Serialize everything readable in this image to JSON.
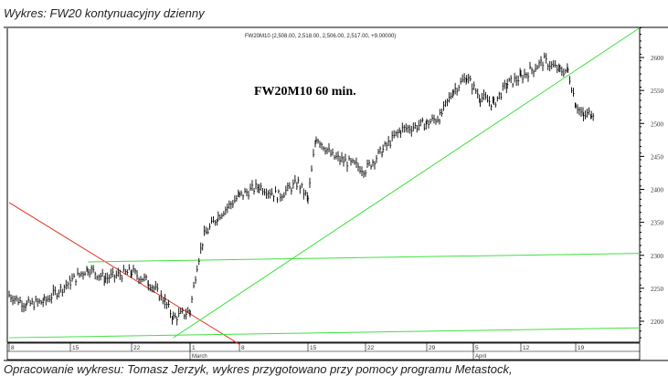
{
  "header": {
    "title": "Wykres: FW20 kontynuacyjny dzienny"
  },
  "footer": {
    "text": "Opracowanie wykresu: Tomasz Jerzyk, wykres przygotowano przy pomocy programu Metastock,"
  },
  "chart_data": {
    "type": "ohlc",
    "series_header": "FW20M10 (2,508.00, 2,518.00, 2,506.00, 2,517.00, +9.00000)",
    "annotation": "FW20M10 60 min.",
    "y_ticks": [
      2200,
      2250,
      2300,
      2350,
      2400,
      2450,
      2500,
      2550,
      2600
    ],
    "ylim": [
      2165,
      2650
    ],
    "x_ticks": [
      {
        "date": "02-08",
        "label": "8"
      },
      {
        "date": "02-15",
        "label": "15"
      },
      {
        "date": "02-22",
        "label": "22"
      },
      {
        "date": "03-01",
        "label": "1"
      },
      {
        "date": "03-08",
        "label": "8"
      },
      {
        "date": "03-15",
        "label": "15"
      },
      {
        "date": "03-22",
        "label": "22"
      },
      {
        "date": "03-29",
        "label": "29"
      },
      {
        "date": "04-05",
        "label": "5"
      },
      {
        "date": "04-12",
        "label": "12"
      },
      {
        "date": "04-19",
        "label": "19"
      }
    ],
    "months": [
      {
        "date": "03-01",
        "label": "March"
      },
      {
        "date": "04-05",
        "label": "April"
      }
    ],
    "series": [
      {
        "values": [
          [
            "02-08",
            2240
          ],
          [
            "02-10",
            2225
          ],
          [
            "02-12",
            2230
          ],
          [
            "02-15",
            2260
          ],
          [
            "02-17",
            2280
          ],
          [
            "02-19",
            2265
          ],
          [
            "02-22",
            2275
          ],
          [
            "02-24",
            2260
          ],
          [
            "02-26",
            2230
          ],
          [
            "02-27",
            2205
          ],
          [
            "03-01",
            2215
          ],
          [
            "03-02",
            2285
          ],
          [
            "03-03",
            2330
          ],
          [
            "03-05",
            2360
          ],
          [
            "03-08",
            2390
          ],
          [
            "03-10",
            2405
          ],
          [
            "03-12",
            2390
          ],
          [
            "03-14",
            2410
          ],
          [
            "03-15",
            2385
          ],
          [
            "03-16",
            2480
          ],
          [
            "03-18",
            2450
          ],
          [
            "03-20",
            2440
          ],
          [
            "03-22",
            2430
          ],
          [
            "03-24",
            2460
          ],
          [
            "03-26",
            2490
          ],
          [
            "03-29",
            2500
          ],
          [
            "03-31",
            2510
          ],
          [
            "04-02",
            2550
          ],
          [
            "04-04",
            2570
          ],
          [
            "04-06",
            2540
          ],
          [
            "04-08",
            2530
          ],
          [
            "04-10",
            2560
          ],
          [
            "04-12",
            2570
          ],
          [
            "04-15",
            2595
          ],
          [
            "04-17",
            2580
          ],
          [
            "04-18",
            2580
          ],
          [
            "04-19",
            2530
          ],
          [
            "04-20",
            2510
          ],
          [
            "04-21",
            2517
          ]
        ]
      }
    ],
    "trendlines": [
      {
        "color": "#e03020",
        "from": [
          "02-08",
          2380
        ],
        "to": [
          "03-08",
          2165
        ]
      },
      {
        "color": "#40e040",
        "from": [
          "02-27",
          2175
        ],
        "to": [
          "04-30",
          2645
        ]
      },
      {
        "color": "#40e040",
        "from": [
          "02-17",
          2290
        ],
        "to": [
          "04-30",
          2303
        ]
      },
      {
        "color": "#40e040",
        "from": [
          "02-08",
          2175
        ],
        "to": [
          "04-30",
          2190
        ]
      }
    ]
  }
}
